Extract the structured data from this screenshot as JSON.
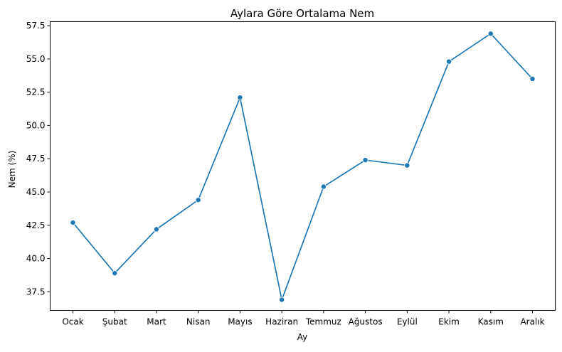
{
  "chart_data": {
    "type": "line",
    "title": "Aylara Göre Ortalama Nem",
    "xlabel": "Ay",
    "ylabel": "Nem (%)",
    "categories": [
      "Ocak",
      "Şubat",
      "Mart",
      "Nisan",
      "Mayıs",
      "Haziran",
      "Temmuz",
      "Ağustos",
      "Eylül",
      "Ekim",
      "Kasım",
      "Aralık"
    ],
    "series": [
      {
        "values": [
          42.7,
          38.9,
          42.2,
          44.4,
          52.1,
          36.9,
          45.4,
          47.4,
          47.0,
          54.8,
          56.9,
          53.5
        ],
        "color": "#1f77b4",
        "marker": "circle"
      }
    ],
    "ylim": [
      36.1,
      57.8
    ],
    "yticks": [
      "37.5",
      "40.0",
      "42.5",
      "45.0",
      "47.5",
      "50.0",
      "52.5",
      "55.0",
      "57.5"
    ],
    "grid": false,
    "legend": "none"
  }
}
